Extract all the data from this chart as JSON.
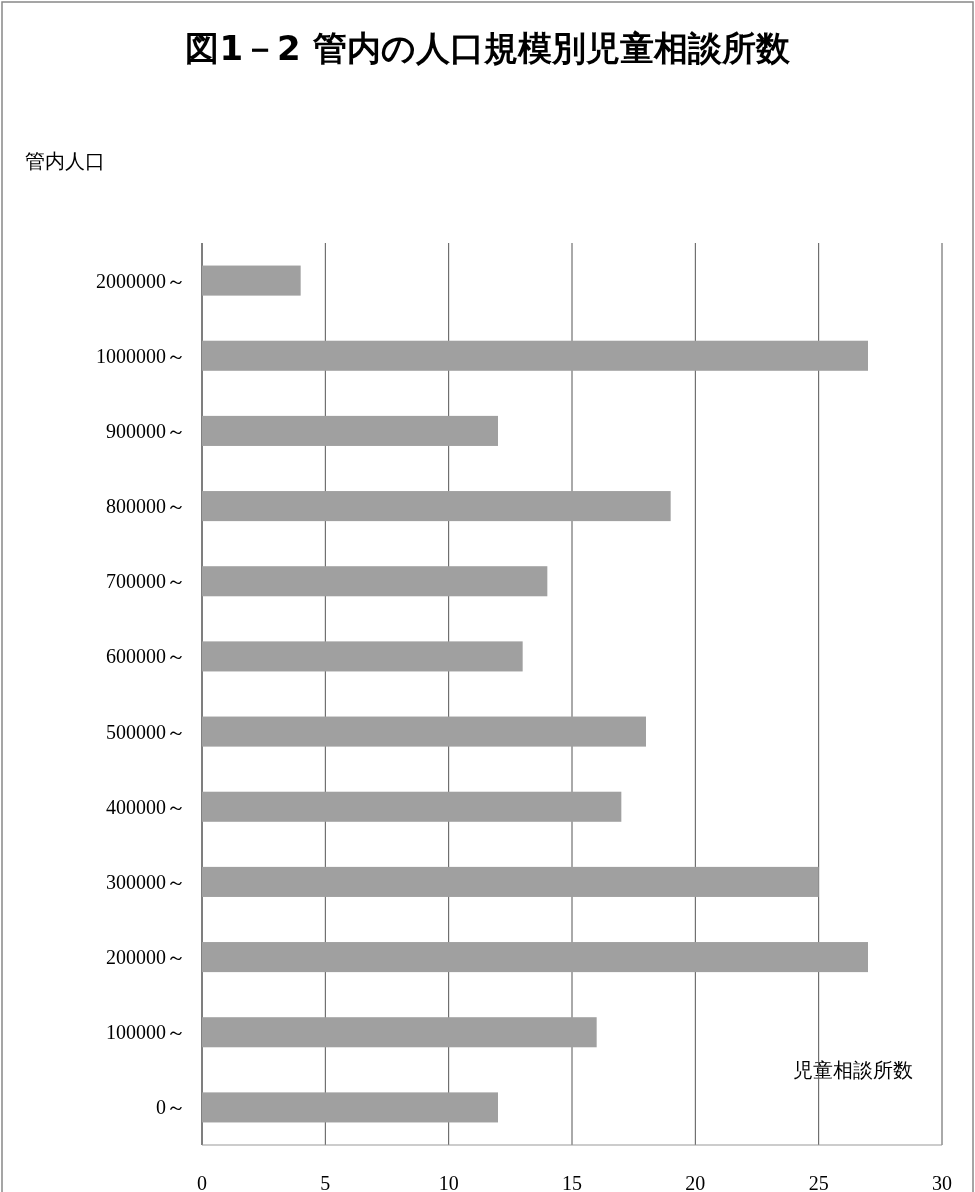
{
  "chart_data": {
    "type": "bar",
    "orientation": "horizontal",
    "title": "図1－2 管内の人口規模別児童相談所数",
    "ylabel": "管内人口",
    "xlabel": "児童相談所数",
    "categories": [
      "2000000～",
      "1000000～",
      "900000～",
      "800000～",
      "700000～",
      "600000～",
      "500000～",
      "400000～",
      "300000～",
      "200000～",
      "100000～",
      "0～"
    ],
    "values": [
      4,
      27,
      12,
      19,
      14,
      13,
      18,
      17,
      25,
      27,
      16,
      12
    ],
    "color": "#a0a0a0",
    "xlim": [
      0,
      30
    ],
    "xticks": [
      0,
      5,
      10,
      15,
      20,
      25,
      30
    ],
    "grid": "x"
  }
}
